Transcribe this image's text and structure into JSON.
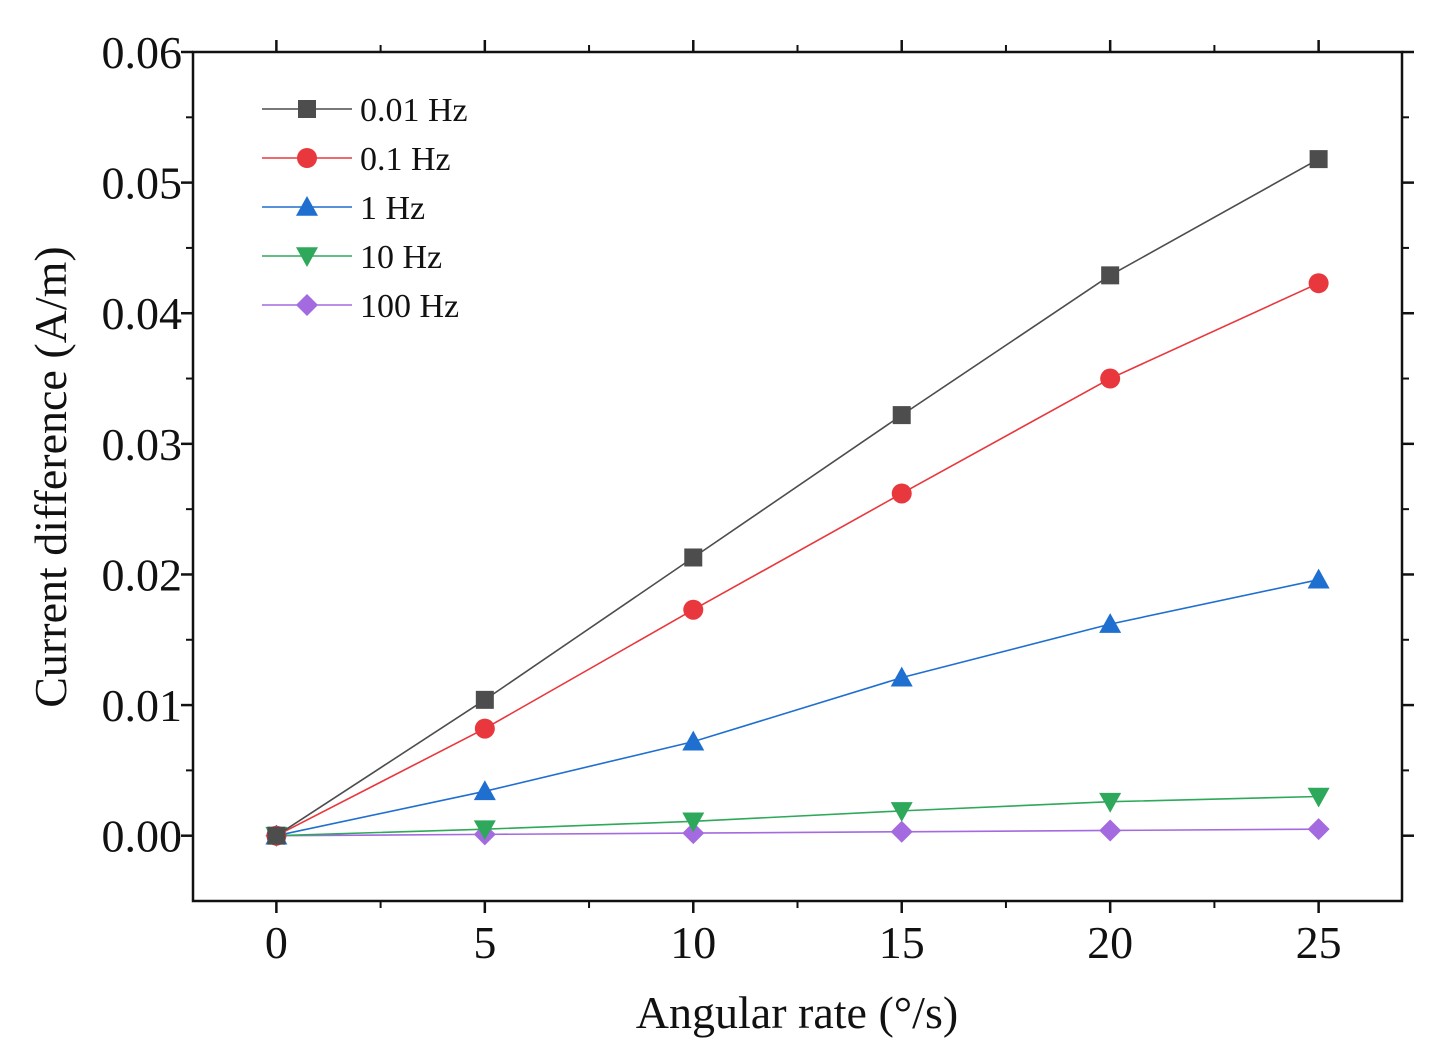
{
  "chart_data": {
    "type": "line",
    "title": "",
    "xlabel": "Angular rate (°/s)",
    "ylabel": "Current difference (A/m)",
    "xlim": [
      -2,
      27
    ],
    "ylim": [
      -0.005,
      0.06
    ],
    "x_ticks": [
      0,
      5,
      10,
      15,
      20,
      25
    ],
    "x_tick_labels": [
      "0",
      "5",
      "10",
      "15",
      "20",
      "25"
    ],
    "y_ticks": [
      0,
      0.01,
      0.02,
      0.03,
      0.04,
      0.05,
      0.06
    ],
    "y_tick_labels": [
      "0.00",
      "0.01",
      "0.02",
      "0.03",
      "0.04",
      "0.05",
      "0.06"
    ],
    "grid": false,
    "legend_position": "top-left",
    "x": [
      0,
      5,
      10,
      15,
      20,
      25
    ],
    "series": [
      {
        "name": "0.01 Hz",
        "color": "#4d4d4d",
        "marker": "square",
        "values": [
          0,
          0.0104,
          0.0213,
          0.0322,
          0.0429,
          0.0518
        ]
      },
      {
        "name": "0.1 Hz",
        "color": "#e8383d",
        "marker": "circle",
        "values": [
          0,
          0.0082,
          0.0173,
          0.0262,
          0.035,
          0.0423
        ]
      },
      {
        "name": "1 Hz",
        "color": "#1f6fd1",
        "marker": "triangle-up",
        "values": [
          0,
          0.0034,
          0.0072,
          0.0121,
          0.0162,
          0.0196
        ]
      },
      {
        "name": "10 Hz",
        "color": "#2ea85a",
        "marker": "triangle-down",
        "values": [
          0,
          0.0005,
          0.0011,
          0.0019,
          0.0026,
          0.003
        ]
      },
      {
        "name": "100 Hz",
        "color": "#a46ae0",
        "marker": "diamond",
        "values": [
          0,
          0.0001,
          0.0002,
          0.0003,
          0.0004,
          0.0005
        ]
      }
    ]
  }
}
